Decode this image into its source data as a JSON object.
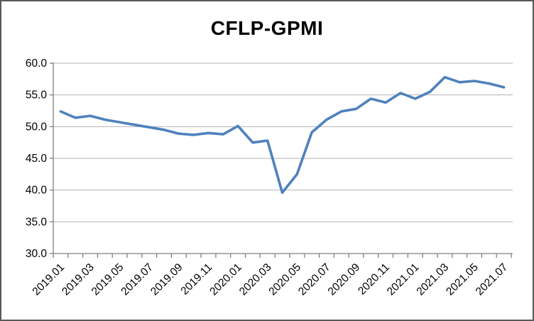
{
  "chart_data": {
    "type": "line",
    "title": "CFLP-GPMI",
    "categories": [
      "2019.01",
      "2019.02",
      "2019.03",
      "2019.04",
      "2019.05",
      "2019.06",
      "2019.07",
      "2019.08",
      "2019.09",
      "2019.10",
      "2019.11",
      "2019.12",
      "2020.01",
      "2020.02",
      "2020.03",
      "2020.04",
      "2020.05",
      "2020.06",
      "2020.07",
      "2020.08",
      "2020.09",
      "2020.10",
      "2020.11",
      "2020.12",
      "2021.01",
      "2021.02",
      "2021.03",
      "2021.04",
      "2021.05",
      "2021.06",
      "2021.07"
    ],
    "series": [
      {
        "name": "CFLP-GPMI",
        "values": [
          52.4,
          51.4,
          51.7,
          51.1,
          50.7,
          50.3,
          49.9,
          49.5,
          48.9,
          48.7,
          49.0,
          48.8,
          50.1,
          47.5,
          47.8,
          39.6,
          42.5,
          49.1,
          51.1,
          52.4,
          52.8,
          54.4,
          53.8,
          55.3,
          54.4,
          55.5,
          57.8,
          57.0,
          57.2,
          56.8,
          56.2
        ]
      }
    ],
    "xlabel": "",
    "ylabel": "",
    "ylim": [
      30.0,
      60.0
    ],
    "ytick_labels": [
      "60.0",
      "55.0",
      "50.0",
      "45.0",
      "40.0",
      "35.0",
      "30.0"
    ],
    "ytick_values": [
      60,
      55,
      50,
      45,
      40,
      35,
      30
    ],
    "xtick_label_every": 2,
    "x_label_rotation_deg": -45,
    "grid": "horizontal",
    "legend_position": "none",
    "colors": {
      "series_line": "#4F81BD",
      "gridline": "#B3B3B3",
      "axis": "#808080",
      "tick": "#808080",
      "text": "#000000",
      "frame_border": "#595959",
      "background": "#FFFFFF"
    }
  }
}
